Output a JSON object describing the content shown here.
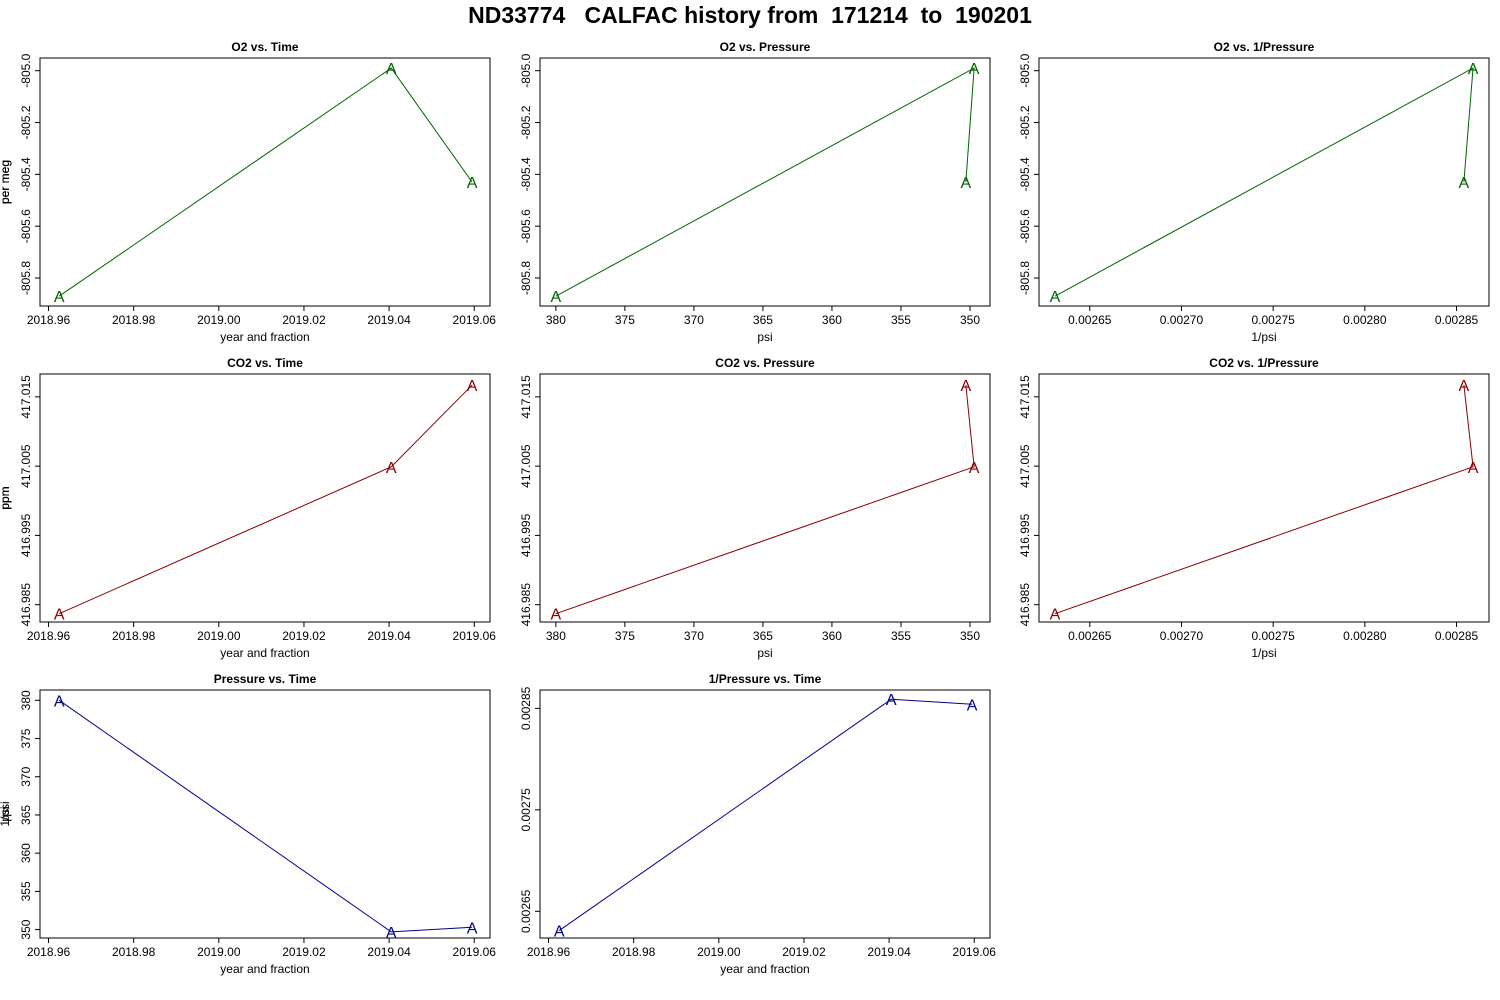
{
  "page": {
    "title": "ND33774   CALFAC history from  171214  to  190201"
  },
  "chart_data": [
    {
      "type": "line",
      "marker": "A",
      "color": "#006400",
      "title": "O2 vs. Time",
      "xlabel": "year and fraction",
      "ylabel": "per meg",
      "x": [
        2018.9625,
        2019.0405,
        2019.0595
      ],
      "y": [
        -805.87,
        -804.99,
        -805.43
      ],
      "xlim": [
        2018.958,
        2019.0637
      ],
      "ylim": [
        -805.908,
        -804.951
      ],
      "xticks": [
        "2018.96",
        "2018.98",
        "2019.00",
        "2019.02",
        "2019.04",
        "2019.06"
      ],
      "yticks": [
        "-805.8",
        "-805.6",
        "-805.4",
        "-805.2",
        "-805.0"
      ]
    },
    {
      "type": "line",
      "marker": "A",
      "color": "#006400",
      "title": "O2 vs. Pressure",
      "xlabel": "psi",
      "ylabel": "per meg",
      "x": [
        380.0,
        349.7,
        350.3
      ],
      "y": [
        -805.87,
        -804.99,
        -805.43
      ],
      "xlim": [
        381.15,
        348.55
      ],
      "ylim": [
        -805.908,
        -804.951
      ],
      "xticks": [
        "380",
        "375",
        "370",
        "365",
        "360",
        "355",
        "350"
      ],
      "yticks": [
        "-805.8",
        "-805.6",
        "-805.4",
        "-805.2",
        "-805.0"
      ]
    },
    {
      "type": "line",
      "marker": "A",
      "color": "#006400",
      "title": "O2 vs. 1/Pressure",
      "xlabel": "1/psi",
      "ylabel": "per meg",
      "x": [
        0.002631,
        0.002859,
        0.002854
      ],
      "y": [
        -805.87,
        -804.99,
        -805.43
      ],
      "xlim": [
        0.0026223,
        0.0028677
      ],
      "ylim": [
        -805.908,
        -804.951
      ],
      "xticks": [
        "0.00265",
        "0.00270",
        "0.00275",
        "0.00280",
        "0.00285"
      ],
      "yticks": [
        "-805.8",
        "-805.6",
        "-805.4",
        "-805.2",
        "-805.0"
      ]
    },
    {
      "type": "line",
      "marker": "A",
      "color": "#8b0000",
      "title": "CO2 vs. Time",
      "xlabel": "year and fraction",
      "ylabel": "ppm",
      "x": [
        2018.9625,
        2019.0405,
        2019.0595
      ],
      "y": [
        416.9837,
        417.0049,
        417.0167
      ],
      "xlim": [
        2018.958,
        2019.0637
      ],
      "ylim": [
        416.9825,
        417.0183
      ],
      "xticks": [
        "2018.96",
        "2018.98",
        "2019.00",
        "2019.02",
        "2019.04",
        "2019.06"
      ],
      "yticks": [
        "416.985",
        "416.995",
        "417.005",
        "417.015"
      ]
    },
    {
      "type": "line",
      "marker": "A",
      "color": "#8b0000",
      "title": "CO2 vs. Pressure",
      "xlabel": "psi",
      "ylabel": "ppm",
      "x": [
        380.0,
        349.7,
        350.3
      ],
      "y": [
        416.9837,
        417.0049,
        417.0167
      ],
      "xlim": [
        381.15,
        348.55
      ],
      "ylim": [
        416.9825,
        417.0183
      ],
      "xticks": [
        "380",
        "375",
        "370",
        "365",
        "360",
        "355",
        "350"
      ],
      "yticks": [
        "416.985",
        "416.995",
        "417.005",
        "417.015"
      ]
    },
    {
      "type": "line",
      "marker": "A",
      "color": "#8b0000",
      "title": "CO2 vs. 1/Pressure",
      "xlabel": "1/psi",
      "ylabel": "ppm",
      "x": [
        0.002631,
        0.002859,
        0.002854
      ],
      "y": [
        416.9837,
        417.0049,
        417.0167
      ],
      "xlim": [
        0.0026223,
        0.0028677
      ],
      "ylim": [
        416.9825,
        417.0183
      ],
      "xticks": [
        "0.00265",
        "0.00270",
        "0.00275",
        "0.00280",
        "0.00285"
      ],
      "yticks": [
        "416.985",
        "416.995",
        "417.005",
        "417.015"
      ]
    },
    {
      "type": "line",
      "marker": "A",
      "color": "#00008b",
      "title": "Pressure vs. Time",
      "xlabel": "year and fraction",
      "ylabel": "psi",
      "x": [
        2018.9625,
        2019.0405,
        2019.0595
      ],
      "y": [
        380.0,
        349.7,
        350.3
      ],
      "xlim": [
        2018.958,
        2019.0637
      ],
      "ylim": [
        348.9,
        381.35
      ],
      "xticks": [
        "2018.96",
        "2018.98",
        "2019.00",
        "2019.02",
        "2019.04",
        "2019.06"
      ],
      "yticks": [
        "350",
        "355",
        "360",
        "365",
        "370",
        "375",
        "380"
      ]
    },
    {
      "type": "line",
      "marker": "A",
      "color": "#00008b",
      "title": "1/Pressure vs. Time",
      "xlabel": "year and fraction",
      "ylabel": "1/psi",
      "x": [
        2018.9625,
        2019.0405,
        2019.0595
      ],
      "y": [
        0.002631,
        0.002859,
        0.002854
      ],
      "xlim": [
        2018.958,
        2019.0637
      ],
      "ylim": [
        0.0026237,
        0.0028681
      ],
      "xticks": [
        "2018.96",
        "2018.98",
        "2019.00",
        "2019.02",
        "2019.04",
        "2019.06"
      ],
      "yticks": [
        "0.00265",
        "0.00275",
        "0.00285"
      ]
    }
  ]
}
